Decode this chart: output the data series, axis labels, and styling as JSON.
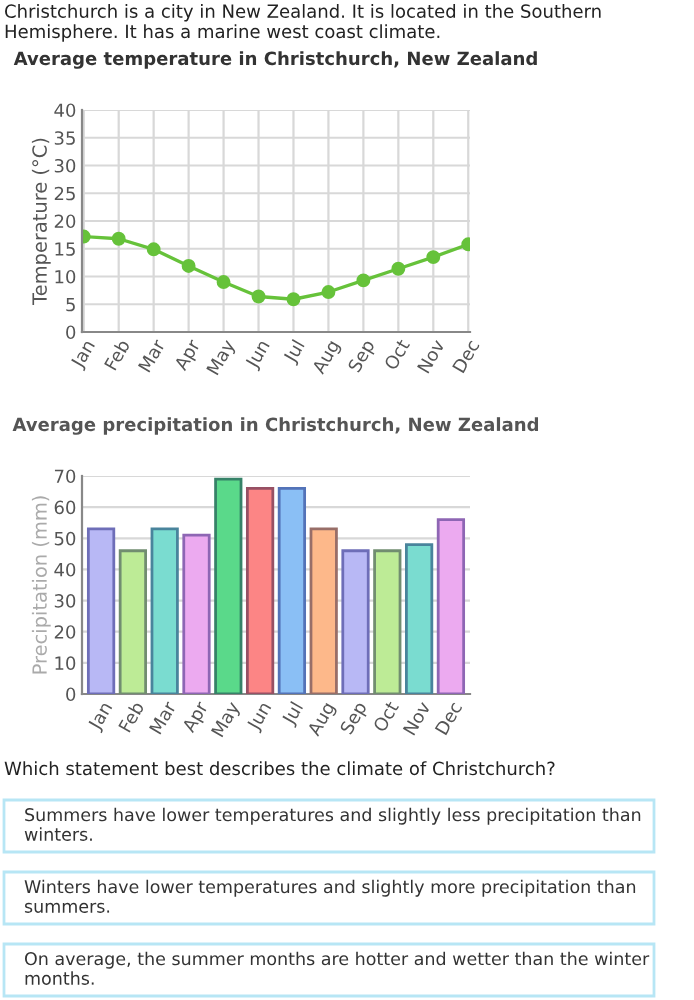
{
  "chart_data": [
    {
      "type": "line",
      "title": "Average temperature in Christchurch, New Zealand",
      "ylabel": "Temperature (°C)",
      "categories": [
        "Jan",
        "Feb",
        "Mar",
        "Apr",
        "May",
        "Jun",
        "Jul",
        "Aug",
        "Sep",
        "Oct",
        "Nov",
        "Dec"
      ],
      "series": [
        {
          "color": "#66c23a",
          "values": [
            17.2,
            16.8,
            14.9,
            11.9,
            9.0,
            6.4,
            5.9,
            7.2,
            9.3,
            11.4,
            13.5,
            15.8
          ]
        }
      ],
      "ylim": [
        0,
        40
      ],
      "yticks": [
        0,
        5,
        10,
        15,
        20,
        25,
        30,
        35,
        40
      ],
      "grid": true,
      "marker": "circle",
      "line_style": "solid",
      "annotations": [
        "Christchurch is a city in New Zealand. It is located in the Southern Hemisphere. It has a marine west coast climate."
      ]
    },
    {
      "type": "bar",
      "title": "Average precipitation in Christchurch, New Zealand",
      "ylabel": "Precipitation (mm)",
      "categories": [
        "Jan",
        "Feb",
        "Mar",
        "Apr",
        "May",
        "Jun",
        "Jul",
        "Aug",
        "Sep",
        "Oct",
        "Nov",
        "Dec"
      ],
      "values": [
        53,
        46,
        53,
        51,
        69,
        66,
        66,
        53,
        46,
        46,
        48,
        56
      ],
      "colors": [
        "#b8b8f5",
        "#bdeb96",
        "#7adcd0",
        "#ecaaf0",
        "#5ad98a",
        "#fc8585",
        "#8abff5",
        "#fdb88a",
        "#b8b8f5",
        "#bdeb96",
        "#7adcd0",
        "#ecaaf0"
      ],
      "ylim": [
        0,
        70
      ],
      "yticks": [
        0,
        10,
        20,
        30,
        40,
        50,
        60,
        70
      ],
      "grid": "y",
      "annotations": [
        "Which statement best describes the climate of Christchurch?",
        "Summers have lower temperatures and slightly less precipitation than winters.",
        "Winters have lower temperatures and slightly more precipitation than summers.",
        "On average, the summer months are hotter and wetter than the winter months."
      ]
    }
  ]
}
